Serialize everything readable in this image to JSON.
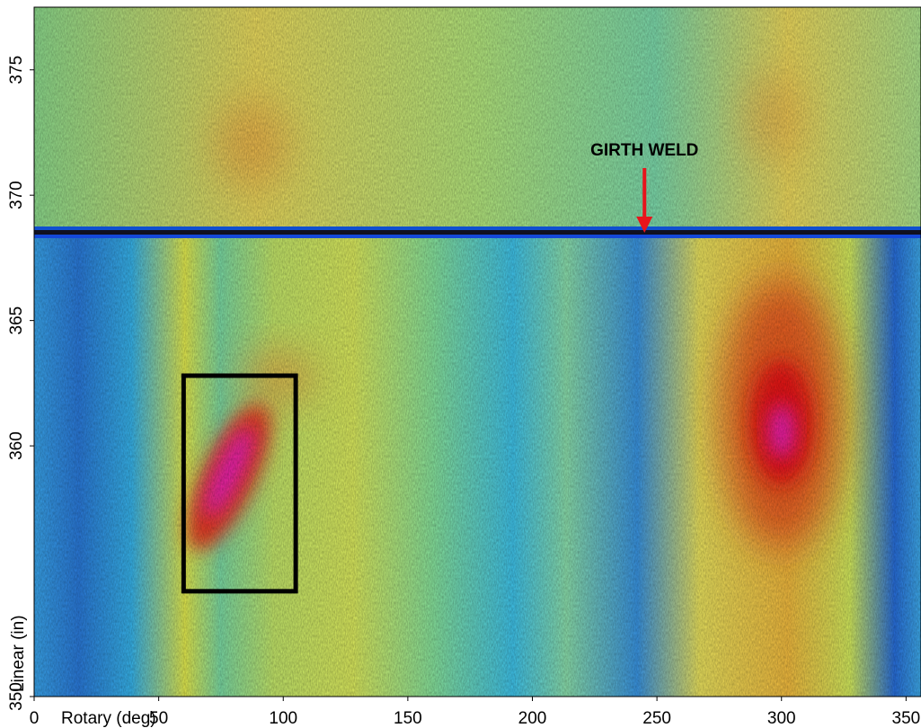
{
  "chart_data": {
    "type": "heatmap",
    "x_label": "Rotary (deg)",
    "y_label": "Linear (in)",
    "xlim": [
      0,
      356
    ],
    "xticks": [
      0,
      50,
      100,
      150,
      200,
      250,
      300,
      350
    ],
    "ylim": [
      350,
      377.5
    ],
    "yticks": [
      350,
      360,
      365,
      370,
      375
    ],
    "annotation": {
      "text": "GIRTH WELD",
      "x": 245,
      "y": 368.5,
      "color": "#e8141c"
    },
    "region": {
      "x": [
        60,
        105
      ],
      "y": [
        354.2,
        362.8
      ],
      "color": "#000000"
    }
  }
}
